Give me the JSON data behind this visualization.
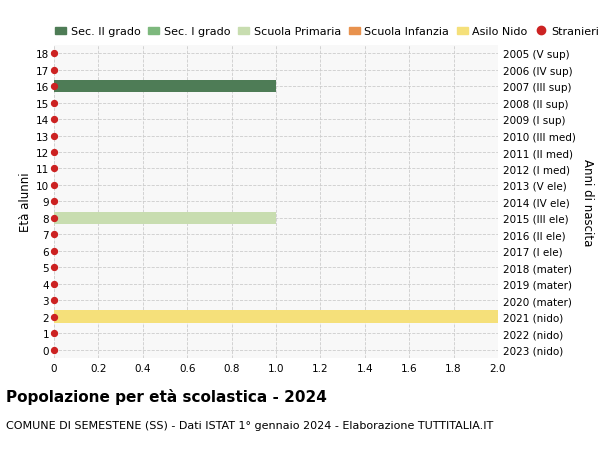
{
  "title": "Popolazione per età scolastica - 2024",
  "subtitle": "COMUNE DI SEMESTENE (SS) - Dati ISTAT 1° gennaio 2024 - Elaborazione TUTTITALIA.IT",
  "ylabel_left": "Età alunni",
  "ylabel_right": "Anni di nascita",
  "xlim": [
    0,
    2.0
  ],
  "xticks": [
    0,
    0.2,
    0.4,
    0.6,
    0.8,
    1.0,
    1.2,
    1.4,
    1.6,
    1.8,
    2.0
  ],
  "ages": [
    0,
    1,
    2,
    3,
    4,
    5,
    6,
    7,
    8,
    9,
    10,
    11,
    12,
    13,
    14,
    15,
    16,
    17,
    18
  ],
  "years": [
    "2023 (nido)",
    "2022 (nido)",
    "2021 (nido)",
    "2020 (mater)",
    "2019 (mater)",
    "2018 (mater)",
    "2017 (I ele)",
    "2016 (II ele)",
    "2015 (III ele)",
    "2014 (IV ele)",
    "2013 (V ele)",
    "2012 (I med)",
    "2011 (II med)",
    "2010 (III med)",
    "2009 (I sup)",
    "2008 (II sup)",
    "2007 (III sup)",
    "2006 (IV sup)",
    "2005 (V sup)"
  ],
  "bars": [
    {
      "age": 16,
      "value": 1.0,
      "color": "#4e7c56"
    },
    {
      "age": 8,
      "value": 1.0,
      "color": "#c8ddb0"
    },
    {
      "age": 2,
      "value": 2.0,
      "color": "#f5e07a"
    }
  ],
  "dot_color": "#cc2222",
  "dot_size": 18,
  "bar_height": 0.75,
  "legend": [
    {
      "label": "Sec. II grado",
      "color": "#4e7c56",
      "type": "patch"
    },
    {
      "label": "Sec. I grado",
      "color": "#7db87d",
      "type": "patch"
    },
    {
      "label": "Scuola Primaria",
      "color": "#c8ddb0",
      "type": "patch"
    },
    {
      "label": "Scuola Infanzia",
      "color": "#e8924e",
      "type": "patch"
    },
    {
      "label": "Asilo Nido",
      "color": "#f5e07a",
      "type": "patch"
    },
    {
      "label": "Stranieri",
      "color": "#cc2222",
      "type": "dot"
    }
  ],
  "grid_color": "#cccccc",
  "background_color": "#ffffff",
  "plot_bg_color": "#f8f8f8",
  "title_fontsize": 11,
  "subtitle_fontsize": 8,
  "tick_fontsize": 7.5,
  "legend_fontsize": 8,
  "ylabel_fontsize": 8.5
}
